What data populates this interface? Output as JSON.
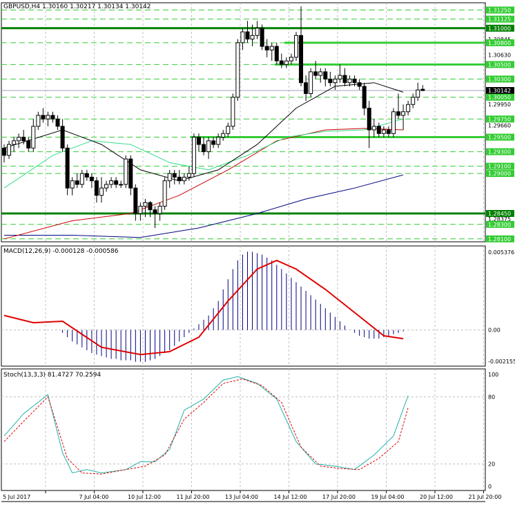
{
  "main_panel": {
    "header": "GBPUSD,H4  1.30160 1.30217 1.30134 1.30142",
    "current_price": "1.30142",
    "ymin": 1.2806,
    "ymax": 1.3135,
    "price_labels": [
      {
        "text": "1.31250",
        "value": 1.3125,
        "style": "green"
      },
      {
        "text": "1.31125",
        "value": 1.31125,
        "style": "green"
      },
      {
        "text": "1.31000",
        "value": 1.31,
        "style": "darkgreen"
      },
      {
        "text": "1.30845",
        "value": 1.30845,
        "style": "plain"
      },
      {
        "text": "1.30800",
        "value": 1.308,
        "style": "green"
      },
      {
        "text": "1.30630",
        "value": 1.3063,
        "style": "plain"
      },
      {
        "text": "1.30500",
        "value": 1.305,
        "style": "green"
      },
      {
        "text": "1.30300",
        "value": 1.303,
        "style": "green"
      },
      {
        "text": "1.30142",
        "value": 1.30142,
        "style": "black"
      },
      {
        "text": "1.30050",
        "value": 1.3005,
        "style": "green"
      },
      {
        "text": "1.29950",
        "value": 1.2995,
        "style": "plain"
      },
      {
        "text": "1.29750",
        "value": 1.2975,
        "style": "green"
      },
      {
        "text": "1.29660",
        "value": 1.2966,
        "style": "plain"
      },
      {
        "text": "1.29500",
        "value": 1.295,
        "style": "green"
      },
      {
        "text": "1.29300",
        "value": 1.293,
        "style": "green"
      },
      {
        "text": "1.29100",
        "value": 1.291,
        "style": "green"
      },
      {
        "text": "1.29000",
        "value": 1.29,
        "style": "green"
      },
      {
        "text": "1.28450",
        "value": 1.2845,
        "style": "darkgreen"
      },
      {
        "text": "1.28375",
        "value": 1.28375,
        "style": "plain"
      },
      {
        "text": "1.28300",
        "value": 1.283,
        "style": "green"
      },
      {
        "text": "1.28100",
        "value": 1.281,
        "style": "green"
      }
    ],
    "dashed_levels": [
      1.3125,
      1.31125,
      1.308,
      1.305,
      1.303,
      1.3005,
      1.2975,
      1.295,
      1.293,
      1.291,
      1.29,
      1.283,
      1.281
    ],
    "thick_lines": [
      {
        "value": 1.31,
        "from": 0,
        "to": 1,
        "color": "#008000",
        "width": 3
      },
      {
        "value": 1.2845,
        "from": 0,
        "to": 1,
        "color": "#008000",
        "width": 3
      },
      {
        "value": 1.308,
        "from": 0.585,
        "to": 1,
        "color": "#33cc33",
        "width": 3
      },
      {
        "value": 1.305,
        "from": 0.565,
        "to": 1,
        "color": "#33cc33",
        "width": 3
      },
      {
        "value": 1.295,
        "from": 0.39,
        "to": 1,
        "color": "#33cc33",
        "width": 3
      }
    ],
    "candles": [
      [
        1.2935,
        1.294,
        1.2915,
        1.2925
      ],
      [
        1.2925,
        1.2945,
        1.292,
        1.294
      ],
      [
        1.294,
        1.295,
        1.293,
        1.2945
      ],
      [
        1.2945,
        1.2955,
        1.2935,
        1.295
      ],
      [
        1.295,
        1.296,
        1.294,
        1.2945
      ],
      [
        1.2945,
        1.295,
        1.293,
        1.2935
      ],
      [
        1.2935,
        1.2975,
        1.293,
        1.2965
      ],
      [
        1.2965,
        1.2985,
        1.296,
        1.298
      ],
      [
        1.298,
        1.299,
        1.297,
        1.2975
      ],
      [
        1.2975,
        1.2985,
        1.2965,
        1.298
      ],
      [
        1.298,
        1.2985,
        1.297,
        1.2975
      ],
      [
        1.2975,
        1.298,
        1.296,
        1.2965
      ],
      [
        1.2965,
        1.2975,
        1.293,
        1.2935
      ],
      [
        1.2935,
        1.294,
        1.287,
        1.288
      ],
      [
        1.288,
        1.2895,
        1.287,
        1.289
      ],
      [
        1.289,
        1.29,
        1.288,
        1.2885
      ],
      [
        1.2885,
        1.2905,
        1.288,
        1.29
      ],
      [
        1.29,
        1.2905,
        1.289,
        1.2895
      ],
      [
        1.2895,
        1.29,
        1.288,
        1.289
      ],
      [
        1.289,
        1.2895,
        1.286,
        1.287
      ],
      [
        1.287,
        1.2895,
        1.286,
        1.288
      ],
      [
        1.288,
        1.289,
        1.2875,
        1.2885
      ],
      [
        1.2885,
        1.2895,
        1.288,
        1.289
      ],
      [
        1.289,
        1.2895,
        1.288,
        1.2885
      ],
      [
        1.2885,
        1.289,
        1.288,
        1.2885
      ],
      [
        1.2885,
        1.2925,
        1.288,
        1.292
      ],
      [
        1.292,
        1.2925,
        1.287,
        1.288
      ],
      [
        1.288,
        1.2885,
        1.2835,
        1.2845
      ],
      [
        1.2845,
        1.286,
        1.2835,
        1.2855
      ],
      [
        1.2855,
        1.2865,
        1.284,
        1.286
      ],
      [
        1.286,
        1.2862,
        1.284,
        1.285
      ],
      [
        1.285,
        1.2855,
        1.2825,
        1.2845
      ],
      [
        1.2845,
        1.286,
        1.2835,
        1.2855
      ],
      [
        1.2855,
        1.2895,
        1.285,
        1.289
      ],
      [
        1.289,
        1.2905,
        1.288,
        1.29
      ],
      [
        1.29,
        1.2905,
        1.2885,
        1.2895
      ],
      [
        1.2895,
        1.2905,
        1.2885,
        1.289
      ],
      [
        1.289,
        1.29,
        1.2885,
        1.2895
      ],
      [
        1.2895,
        1.291,
        1.289,
        1.29
      ],
      [
        1.29,
        1.2955,
        1.2895,
        1.295
      ],
      [
        1.295,
        1.2955,
        1.293,
        1.294
      ],
      [
        1.294,
        1.295,
        1.2925,
        1.293
      ],
      [
        1.293,
        1.295,
        1.292,
        1.2945
      ],
      [
        1.2945,
        1.295,
        1.2935,
        1.294
      ],
      [
        1.294,
        1.2955,
        1.2935,
        1.295
      ],
      [
        1.295,
        1.296,
        1.2945,
        1.2955
      ],
      [
        1.2955,
        1.297,
        1.295,
        1.2965
      ],
      [
        1.2965,
        1.301,
        1.296,
        1.3005
      ],
      [
        1.3005,
        1.3085,
        1.3,
        1.308
      ],
      [
        1.308,
        1.31,
        1.307,
        1.3095
      ],
      [
        1.3095,
        1.311,
        1.308,
        1.3085
      ],
      [
        1.3085,
        1.3105,
        1.3075,
        1.309
      ],
      [
        1.309,
        1.311,
        1.3085,
        1.31
      ],
      [
        1.31,
        1.3105,
        1.307,
        1.3075
      ],
      [
        1.3075,
        1.3085,
        1.306,
        1.307
      ],
      [
        1.307,
        1.308,
        1.3055,
        1.3075
      ],
      [
        1.3075,
        1.308,
        1.305,
        1.3055
      ],
      [
        1.3055,
        1.3065,
        1.3045,
        1.305
      ],
      [
        1.305,
        1.306,
        1.3045,
        1.3055
      ],
      [
        1.3055,
        1.3065,
        1.305,
        1.306
      ],
      [
        1.306,
        1.3095,
        1.3055,
        1.309
      ],
      [
        1.309,
        1.313,
        1.302,
        1.3025
      ],
      [
        1.3025,
        1.3035,
        1.3,
        1.301
      ],
      [
        1.301,
        1.3045,
        1.3005,
        1.304
      ],
      [
        1.304,
        1.3055,
        1.303,
        1.3035
      ],
      [
        1.3035,
        1.3045,
        1.3025,
        1.304
      ],
      [
        1.304,
        1.3045,
        1.302,
        1.303
      ],
      [
        1.303,
        1.304,
        1.302,
        1.3025
      ],
      [
        1.3025,
        1.3035,
        1.3015,
        1.303
      ],
      [
        1.303,
        1.305,
        1.3025,
        1.3035
      ],
      [
        1.3035,
        1.3045,
        1.302,
        1.3025
      ],
      [
        1.3025,
        1.3035,
        1.302,
        1.303
      ],
      [
        1.303,
        1.3035,
        1.302,
        1.3025
      ],
      [
        1.3025,
        1.303,
        1.3015,
        1.302
      ],
      [
        1.302,
        1.3025,
        1.298,
        1.299
      ],
      [
        1.299,
        1.3,
        1.2935,
        1.296
      ],
      [
        1.296,
        1.2975,
        1.295,
        1.2965
      ],
      [
        1.2965,
        1.297,
        1.295,
        1.2955
      ],
      [
        1.2955,
        1.2965,
        1.295,
        1.296
      ],
      [
        1.296,
        1.2965,
        1.295,
        1.2955
      ],
      [
        1.2955,
        1.299,
        1.295,
        1.2985
      ],
      [
        1.2985,
        1.301,
        1.2975,
        1.298
      ],
      [
        1.298,
        1.2995,
        1.296,
        1.2985
      ],
      [
        1.2985,
        1.3,
        1.298,
        1.2995
      ],
      [
        1.2995,
        1.301,
        1.299,
        1.3005
      ],
      [
        1.3005,
        1.3025,
        1.3,
        1.3015
      ],
      [
        1.3016,
        1.30217,
        1.30134,
        1.30142
      ]
    ],
    "ma_black": [
      [
        0,
        1.2935
      ],
      [
        12,
        1.296
      ],
      [
        20,
        1.294
      ],
      [
        28,
        1.2905
      ],
      [
        36,
        1.289
      ],
      [
        44,
        1.2905
      ],
      [
        52,
        1.294
      ],
      [
        60,
        1.299
      ],
      [
        68,
        1.302
      ],
      [
        76,
        1.3025
      ],
      [
        82,
        1.3012
      ]
    ],
    "ma_green": [
      [
        0,
        1.288
      ],
      [
        10,
        1.2925
      ],
      [
        18,
        1.2945
      ],
      [
        26,
        1.294
      ],
      [
        34,
        1.2915
      ],
      [
        42,
        1.2905
      ],
      [
        50,
        1.2925
      ],
      [
        58,
        1.295
      ],
      [
        66,
        1.2958
      ],
      [
        74,
        1.296
      ],
      [
        82,
        1.2975
      ]
    ],
    "ma_red": [
      [
        0,
        1.281
      ],
      [
        14,
        1.2835
      ],
      [
        26,
        1.2845
      ],
      [
        36,
        1.287
      ],
      [
        46,
        1.2905
      ],
      [
        56,
        1.2945
      ],
      [
        66,
        1.296
      ],
      [
        74,
        1.2962
      ],
      [
        82,
        1.296
      ]
    ],
    "ma_navy": [
      [
        0,
        1.2815
      ],
      [
        14,
        1.2815
      ],
      [
        28,
        1.2812
      ],
      [
        40,
        1.2825
      ],
      [
        52,
        1.2845
      ],
      [
        62,
        1.2865
      ],
      [
        72,
        1.288
      ],
      [
        82,
        1.2898
      ]
    ]
  },
  "macd_panel": {
    "header": "MACD(12,26,9) -0.000128 -0.000586",
    "ymin": -0.0025,
    "ymax": 0.0058,
    "labels": [
      {
        "text": "0.005376",
        "value": 0.005376
      },
      {
        "text": "0.00",
        "value": 0.0
      },
      {
        "text": "-0.002155",
        "value": -0.002155
      }
    ],
    "histogram": [
      0.0,
      0.0,
      0.0,
      0.0,
      0.0,
      0.0,
      0.0,
      0.0,
      0.0,
      0.0,
      0.0,
      0.0,
      -0.0002,
      -0.0005,
      -0.0008,
      -0.001,
      -0.0012,
      -0.0014,
      -0.0016,
      -0.0017,
      -0.0018,
      -0.0019,
      -0.002,
      -0.002,
      -0.0021,
      -0.0021,
      -0.0021,
      -0.0022,
      -0.0022,
      -0.0022,
      -0.0021,
      -0.002,
      -0.0018,
      -0.0016,
      -0.0014,
      -0.0011,
      -0.0008,
      -0.0005,
      -0.0002,
      0.0001,
      0.0004,
      0.0007,
      0.001,
      0.0015,
      0.002,
      0.0028,
      0.0035,
      0.0042,
      0.0048,
      0.0052,
      0.0054,
      0.0054,
      0.0053,
      0.0052,
      0.005,
      0.0048,
      0.0045,
      0.0042,
      0.0039,
      0.0036,
      0.0033,
      0.003,
      0.0027,
      0.0024,
      0.0021,
      0.0018,
      0.0015,
      0.0012,
      0.0009,
      0.0006,
      0.0003,
      0.0,
      -0.0002,
      -0.0004,
      -0.0005,
      -0.0006,
      -0.0006,
      -0.0006,
      -0.0005,
      -0.0004,
      -0.0003,
      -0.0002,
      -0.0001
    ],
    "signal": [
      [
        0,
        0.001
      ],
      [
        6,
        0.0005
      ],
      [
        12,
        0.0006
      ],
      [
        20,
        -0.0012
      ],
      [
        28,
        -0.0017
      ],
      [
        34,
        -0.0015
      ],
      [
        40,
        -0.0005
      ],
      [
        46,
        0.002
      ],
      [
        52,
        0.0042
      ],
      [
        56,
        0.0048
      ],
      [
        60,
        0.0042
      ],
      [
        66,
        0.0028
      ],
      [
        72,
        0.0012
      ],
      [
        78,
        -0.0004
      ],
      [
        82,
        -0.0006
      ]
    ]
  },
  "stoch_panel": {
    "header": "Stoch(13,3,3) 81.4727 70.2594",
    "labels": [
      {
        "text": "100",
        "value": 100
      },
      {
        "text": "80",
        "value": 80
      },
      {
        "text": "20",
        "value": 20
      },
      {
        "text": "0",
        "value": 0
      }
    ],
    "main": [
      [
        0,
        45
      ],
      [
        4,
        65
      ],
      [
        9,
        82
      ],
      [
        12,
        30
      ],
      [
        14,
        12
      ],
      [
        17,
        15
      ],
      [
        20,
        12
      ],
      [
        25,
        15
      ],
      [
        28,
        22
      ],
      [
        31,
        22
      ],
      [
        34,
        33
      ],
      [
        37,
        68
      ],
      [
        41,
        78
      ],
      [
        45,
        95
      ],
      [
        48,
        98
      ],
      [
        52,
        92
      ],
      [
        56,
        78
      ],
      [
        60,
        40
      ],
      [
        64,
        20
      ],
      [
        68,
        18
      ],
      [
        72,
        15
      ],
      [
        76,
        28
      ],
      [
        80,
        45
      ],
      [
        83,
        81
      ]
    ],
    "signal": [
      [
        0,
        40
      ],
      [
        4,
        58
      ],
      [
        9,
        80
      ],
      [
        13,
        25
      ],
      [
        16,
        12
      ],
      [
        20,
        11
      ],
      [
        25,
        15
      ],
      [
        29,
        18
      ],
      [
        33,
        28
      ],
      [
        37,
        60
      ],
      [
        41,
        75
      ],
      [
        45,
        92
      ],
      [
        49,
        96
      ],
      [
        53,
        90
      ],
      [
        57,
        75
      ],
      [
        61,
        35
      ],
      [
        65,
        18
      ],
      [
        69,
        16
      ],
      [
        73,
        15
      ],
      [
        77,
        25
      ],
      [
        81,
        40
      ],
      [
        83,
        70
      ]
    ]
  },
  "time_axis": [
    {
      "text": "5 Jul 2017",
      "bar": 0
    },
    {
      "text": "7 Jul 04:00",
      "bar": 10
    },
    {
      "text": "10 Jul 12:00",
      "bar": 20
    },
    {
      "text": "11 Jul 20:00",
      "bar": 30
    },
    {
      "text": "13 Jul 04:00",
      "bar": 40
    },
    {
      "text": "14 Jul 12:00",
      "bar": 50
    },
    {
      "text": "17 Jul 20:00",
      "bar": 60
    },
    {
      "text": "19 Jul 04:00",
      "bar": 70
    },
    {
      "text": "20 Jul 12:00",
      "bar": 80
    },
    {
      "text": "21 Jul 20:00",
      "bar": 90
    }
  ],
  "colors": {
    "bull": "#ffffff",
    "bear": "#000000",
    "grid": "#c0c0c0",
    "level_green": "#33cc33",
    "level_dark": "#008000",
    "macd_hist": "#000080",
    "macd_signal": "#e00000",
    "stoch_main": "#20b2aa",
    "stoch_signal": "#e00000"
  }
}
